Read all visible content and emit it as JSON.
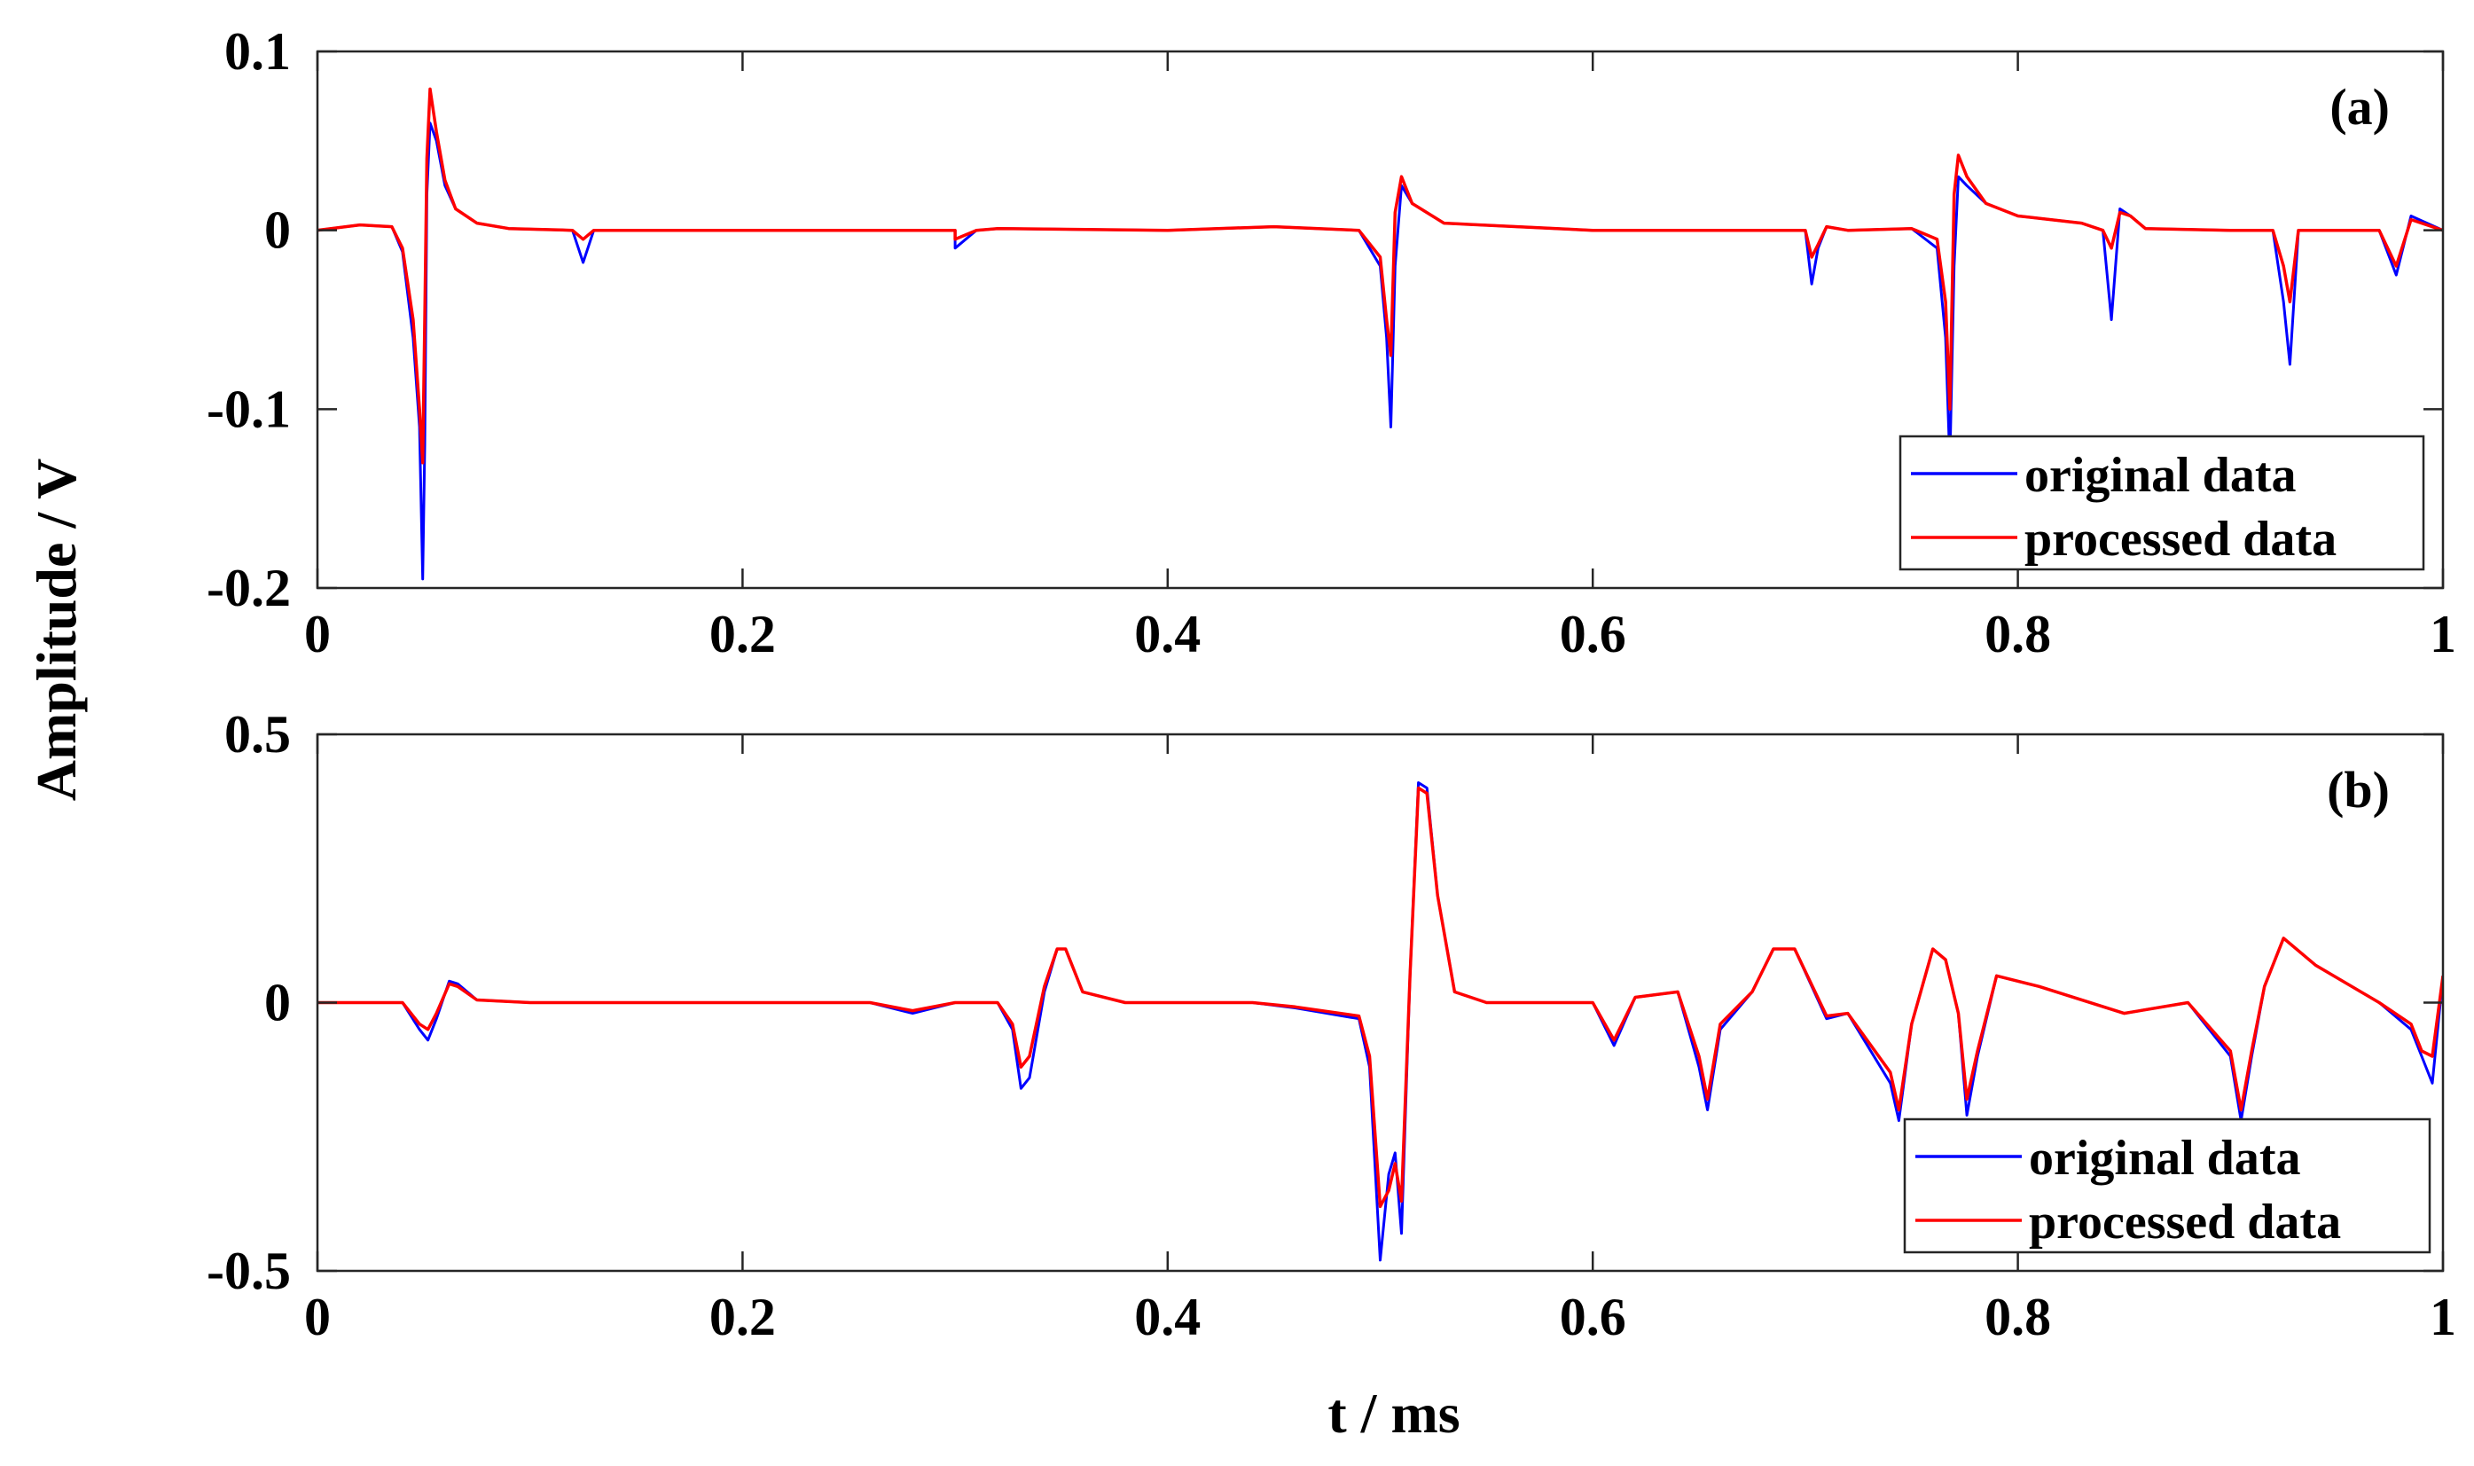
{
  "chart_data": [
    {
      "type": "line",
      "panel_label": "(a)",
      "xlabel": "",
      "ylabel": "Amplitude / V",
      "xlim": [
        0,
        1
      ],
      "ylim": [
        -0.2,
        0.1
      ],
      "x_ticks": [
        0,
        0.2,
        0.4,
        0.6,
        0.8,
        1
      ],
      "x_tick_labels": [
        "0",
        "0.2",
        "0.4",
        "0.6",
        "0.8",
        "1"
      ],
      "y_ticks": [
        -0.2,
        -0.1,
        0,
        0.1
      ],
      "y_tick_labels": [
        "-0.2",
        "-0.1",
        "0",
        "0.1"
      ],
      "grid": false,
      "legend_position": "bottom-right",
      "series": [
        {
          "name": "original data",
          "color": "#0000ff",
          "x": [
            0,
            0.02,
            0.035,
            0.04,
            0.045,
            0.048,
            0.0495,
            0.0505,
            0.0515,
            0.053,
            0.056,
            0.06,
            0.065,
            0.075,
            0.09,
            0.12,
            0.125,
            0.13,
            0.2,
            0.3,
            0.3,
            0.31,
            0.32,
            0.4,
            0.45,
            0.49,
            0.5,
            0.503,
            0.505,
            0.507,
            0.51,
            0.515,
            0.53,
            0.6,
            0.7,
            0.703,
            0.706,
            0.71,
            0.72,
            0.75,
            0.762,
            0.766,
            0.768,
            0.77,
            0.772,
            0.776,
            0.785,
            0.8,
            0.83,
            0.84,
            0.844,
            0.848,
            0.853,
            0.86,
            0.9,
            0.92,
            0.925,
            0.928,
            0.932,
            0.94,
            0.96,
            0.97,
            0.978,
            0.985,
            1
          ],
          "y": [
            0,
            0.003,
            0.002,
            -0.012,
            -0.06,
            -0.11,
            -0.195,
            -0.12,
            0.02,
            0.06,
            0.05,
            0.025,
            0.012,
            0.004,
            0.001,
            0,
            -0.018,
            0,
            0,
            0,
            -0.01,
            0,
            0.001,
            0,
            0.002,
            0,
            -0.02,
            -0.06,
            -0.11,
            -0.02,
            0.025,
            0.015,
            0.004,
            0,
            0,
            -0.03,
            -0.01,
            0.002,
            0,
            0.001,
            -0.01,
            -0.06,
            -0.13,
            -0.02,
            0.03,
            0.025,
            0.015,
            0.008,
            0.004,
            0,
            -0.05,
            0.012,
            0.008,
            0.001,
            0,
            0,
            -0.04,
            -0.075,
            0,
            0,
            0,
            0,
            -0.025,
            0.008,
            0
          ]
        },
        {
          "name": "processed data",
          "color": "#ff0000",
          "x": [
            0,
            0.02,
            0.035,
            0.04,
            0.045,
            0.048,
            0.0495,
            0.0505,
            0.0515,
            0.053,
            0.056,
            0.06,
            0.065,
            0.075,
            0.09,
            0.12,
            0.125,
            0.13,
            0.2,
            0.3,
            0.3,
            0.31,
            0.32,
            0.4,
            0.45,
            0.49,
            0.5,
            0.503,
            0.505,
            0.507,
            0.51,
            0.515,
            0.53,
            0.6,
            0.7,
            0.703,
            0.706,
            0.71,
            0.72,
            0.75,
            0.762,
            0.766,
            0.768,
            0.77,
            0.772,
            0.776,
            0.785,
            0.8,
            0.83,
            0.84,
            0.844,
            0.848,
            0.853,
            0.86,
            0.9,
            0.92,
            0.925,
            0.928,
            0.932,
            0.94,
            0.96,
            0.97,
            0.978,
            0.985,
            1
          ],
          "y": [
            0,
            0.003,
            0.002,
            -0.01,
            -0.05,
            -0.1,
            -0.13,
            -0.05,
            0.04,
            0.079,
            0.055,
            0.028,
            0.012,
            0.004,
            0.001,
            0,
            -0.005,
            0,
            0,
            0,
            -0.005,
            0,
            0.001,
            0,
            0.002,
            0,
            -0.015,
            -0.05,
            -0.07,
            0.01,
            0.03,
            0.015,
            0.004,
            0,
            0,
            -0.015,
            -0.008,
            0.002,
            0,
            0.001,
            -0.005,
            -0.04,
            -0.1,
            0.02,
            0.042,
            0.03,
            0.015,
            0.008,
            0.004,
            0,
            -0.01,
            0.01,
            0.008,
            0.001,
            0,
            0,
            -0.02,
            -0.04,
            0,
            0,
            0,
            0,
            -0.02,
            0.006,
            0
          ]
        }
      ]
    },
    {
      "type": "line",
      "panel_label": "(b)",
      "xlabel": "t / ms",
      "ylabel": "Amplitude / V",
      "xlim": [
        0,
        1
      ],
      "ylim": [
        -0.5,
        0.5
      ],
      "x_ticks": [
        0,
        0.2,
        0.4,
        0.6,
        0.8,
        1
      ],
      "x_tick_labels": [
        "0",
        "0.2",
        "0.4",
        "0.6",
        "0.8",
        "1"
      ],
      "y_ticks": [
        -0.5,
        0,
        0.5
      ],
      "y_tick_labels": [
        "-0.5",
        "0",
        "0.5"
      ],
      "grid": false,
      "legend_position": "bottom-right",
      "series": [
        {
          "name": "original data",
          "color": "#0000ff",
          "x": [
            0,
            0.04,
            0.048,
            0.052,
            0.056,
            0.062,
            0.066,
            0.075,
            0.1,
            0.26,
            0.28,
            0.3,
            0.32,
            0.327,
            0.331,
            0.335,
            0.342,
            0.348,
            0.352,
            0.36,
            0.38,
            0.4,
            0.44,
            0.46,
            0.49,
            0.495,
            0.5,
            0.504,
            0.507,
            0.51,
            0.514,
            0.518,
            0.522,
            0.527,
            0.535,
            0.55,
            0.6,
            0.61,
            0.62,
            0.64,
            0.65,
            0.654,
            0.66,
            0.675,
            0.685,
            0.695,
            0.71,
            0.72,
            0.74,
            0.744,
            0.75,
            0.76,
            0.766,
            0.772,
            0.776,
            0.781,
            0.79,
            0.81,
            0.85,
            0.88,
            0.9,
            0.905,
            0.91,
            0.916,
            0.925,
            0.94,
            0.97,
            0.985,
            0.99,
            0.995,
            1
          ],
          "y": [
            0,
            0,
            -0.05,
            -0.07,
            -0.03,
            0.04,
            0.035,
            0.005,
            0,
            0,
            -0.02,
            0,
            0,
            -0.05,
            -0.16,
            -0.14,
            0.02,
            0.1,
            0.1,
            0.02,
            0,
            0,
            0,
            -0.01,
            -0.03,
            -0.12,
            -0.48,
            -0.32,
            -0.28,
            -0.43,
            0.05,
            0.41,
            0.4,
            0.2,
            0.02,
            0,
            0,
            -0.08,
            0.01,
            0.02,
            -0.12,
            -0.2,
            -0.05,
            0.02,
            0.1,
            0.1,
            -0.03,
            -0.02,
            -0.15,
            -0.22,
            -0.04,
            0.1,
            0.08,
            -0.02,
            -0.21,
            -0.1,
            0.05,
            0.03,
            -0.02,
            0,
            -0.1,
            -0.22,
            -0.1,
            0.03,
            0.12,
            0.07,
            0,
            -0.05,
            -0.1,
            -0.15,
            0.05
          ]
        },
        {
          "name": "processed data",
          "color": "#ff0000",
          "x": [
            0,
            0.04,
            0.048,
            0.052,
            0.056,
            0.062,
            0.066,
            0.075,
            0.1,
            0.26,
            0.28,
            0.3,
            0.32,
            0.327,
            0.331,
            0.335,
            0.342,
            0.348,
            0.352,
            0.36,
            0.38,
            0.4,
            0.44,
            0.46,
            0.49,
            0.495,
            0.5,
            0.504,
            0.507,
            0.51,
            0.514,
            0.518,
            0.522,
            0.527,
            0.535,
            0.55,
            0.6,
            0.61,
            0.62,
            0.64,
            0.65,
            0.654,
            0.66,
            0.675,
            0.685,
            0.695,
            0.71,
            0.72,
            0.74,
            0.744,
            0.75,
            0.76,
            0.766,
            0.772,
            0.776,
            0.781,
            0.79,
            0.81,
            0.85,
            0.88,
            0.9,
            0.905,
            0.91,
            0.916,
            0.925,
            0.94,
            0.97,
            0.985,
            0.99,
            0.995,
            1
          ],
          "y": [
            0,
            0,
            -0.04,
            -0.05,
            -0.02,
            0.035,
            0.03,
            0.005,
            0,
            0,
            -0.015,
            0,
            0,
            -0.04,
            -0.12,
            -0.1,
            0.03,
            0.1,
            0.1,
            0.02,
            0,
            0,
            0,
            -0.008,
            -0.025,
            -0.1,
            -0.38,
            -0.35,
            -0.3,
            -0.37,
            0.05,
            0.4,
            0.39,
            0.2,
            0.02,
            0,
            0,
            -0.07,
            0.01,
            0.02,
            -0.1,
            -0.18,
            -0.04,
            0.02,
            0.1,
            0.1,
            -0.025,
            -0.02,
            -0.13,
            -0.2,
            -0.04,
            0.1,
            0.08,
            -0.02,
            -0.18,
            -0.09,
            0.05,
            0.03,
            -0.02,
            0,
            -0.09,
            -0.2,
            -0.09,
            0.03,
            0.12,
            0.07,
            0,
            -0.04,
            -0.09,
            -0.1,
            0.05
          ]
        }
      ]
    }
  ]
}
